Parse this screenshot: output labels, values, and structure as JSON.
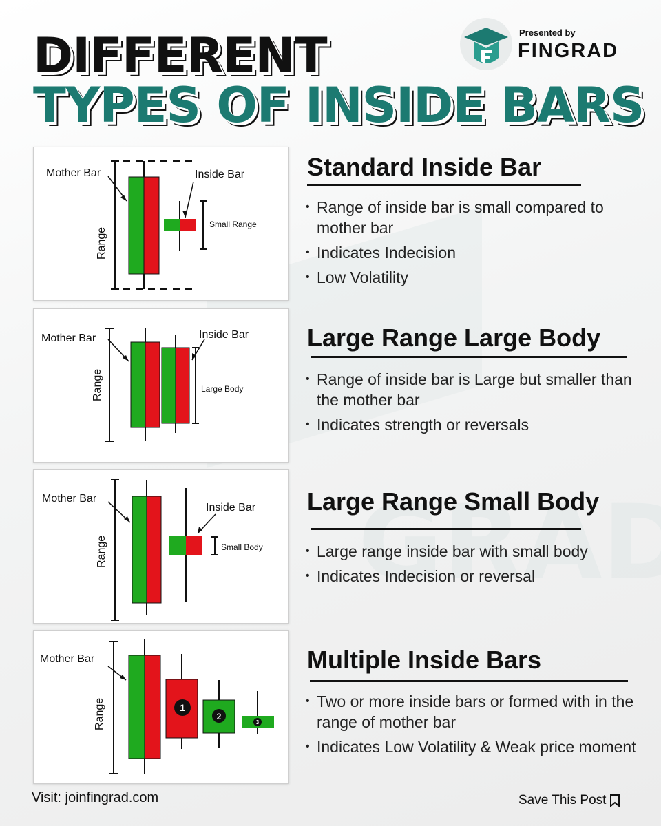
{
  "title": {
    "line1": "DIFFERENT",
    "line2": "TYPES OF INSIDE BARS"
  },
  "brand": {
    "presented_by": "Presented by",
    "name": "FINGRAD"
  },
  "colors": {
    "accent": "#1c7a71",
    "bull": "#1faa1f",
    "bear": "#e3141b",
    "text": "#111111"
  },
  "sections": [
    {
      "title": "Standard Inside Bar",
      "bullets": [
        "Range of inside bar is small compared to mother bar",
        "Indicates Indecision",
        "Low Volatility"
      ],
      "diagram": {
        "mother_label": "Mother Bar",
        "inside_label": "Inside Bar",
        "range_label": "Range",
        "annotation": "Small Range"
      }
    },
    {
      "title": "Large Range Large Body",
      "bullets": [
        "Range of inside bar is Large but smaller than the mother bar",
        "Indicates strength or reversals"
      ],
      "diagram": {
        "mother_label": "Mother Bar",
        "inside_label": "Inside Bar",
        "range_label": "Range",
        "annotation": "Large Body"
      }
    },
    {
      "title": "Large Range Small Body",
      "bullets": [
        "Large range inside bar with small body",
        "Indicates Indecision or reversal"
      ],
      "diagram": {
        "mother_label": "Mother Bar",
        "inside_label": "Inside Bar",
        "range_label": "Range",
        "annotation": "Small Body"
      }
    },
    {
      "title": "Multiple Inside Bars",
      "bullets": [
        "Two or more inside bars or formed with in the range of mother bar",
        "Indicates Low Volatility & Weak price moment"
      ],
      "diagram": {
        "mother_label": "Mother Bar",
        "range_label": "Range",
        "numbers": [
          "1",
          "2",
          "3"
        ]
      }
    }
  ],
  "footer": {
    "visit": "Visit: joinfingrad.com",
    "save": "Save This Post",
    "save_icon": "bookmark-icon"
  }
}
